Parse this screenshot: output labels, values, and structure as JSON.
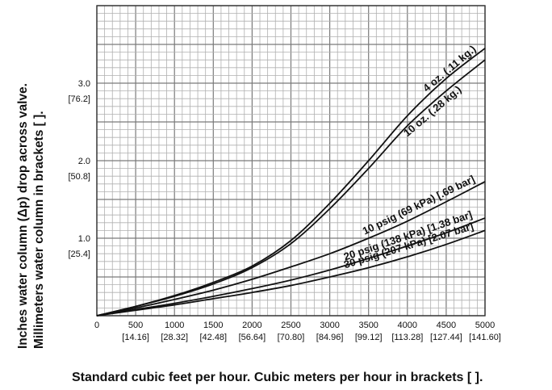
{
  "chart_data": {
    "type": "line",
    "xlabel": "Standard cubic feet per hour. Cubic meters per hour in brackets [ ].",
    "ylabel_lines": [
      "Inches water column (Δp) drop across valve.",
      "Millimeters water column in brackets [ ]."
    ],
    "xlim": [
      0,
      5000
    ],
    "ylim": [
      0,
      4.0
    ],
    "grid": true,
    "x_ticks": [
      {
        "value": 0,
        "label": "0",
        "sublabel": ""
      },
      {
        "value": 500,
        "label": "500",
        "sublabel": "[14.16]"
      },
      {
        "value": 1000,
        "label": "1000",
        "sublabel": "[28.32]"
      },
      {
        "value": 1500,
        "label": "1500",
        "sublabel": "[42.48]"
      },
      {
        "value": 2000,
        "label": "2000",
        "sublabel": "[56.64]"
      },
      {
        "value": 2500,
        "label": "2500",
        "sublabel": "[70.80]"
      },
      {
        "value": 3000,
        "label": "3000",
        "sublabel": "[84.96]"
      },
      {
        "value": 3500,
        "label": "3500",
        "sublabel": "[99.12]"
      },
      {
        "value": 4000,
        "label": "4000",
        "sublabel": "[113.28]"
      },
      {
        "value": 4500,
        "label": "4500",
        "sublabel": "[127.44]"
      },
      {
        "value": 5000,
        "label": "5000",
        "sublabel": "[141.60]"
      }
    ],
    "y_ticks": [
      {
        "value": 1.0,
        "label": "1.0",
        "sublabel": "[25.4]"
      },
      {
        "value": 2.0,
        "label": "2.0",
        "sublabel": "[50.8]"
      },
      {
        "value": 3.0,
        "label": "3.0",
        "sublabel": "[76.2]"
      }
    ],
    "series": [
      {
        "name": "4 oz. (.11 kg.)",
        "x": [
          0,
          500,
          1000,
          1500,
          2000,
          2500,
          3000,
          3500,
          4000,
          4500,
          5000
        ],
        "y": [
          0,
          0.12,
          0.26,
          0.43,
          0.64,
          0.97,
          1.45,
          2.0,
          2.58,
          3.06,
          3.45
        ]
      },
      {
        "name": "10 oz. (.28 kg.)",
        "x": [
          0,
          500,
          1000,
          1500,
          2000,
          2500,
          3000,
          3500,
          4000,
          4500,
          5000
        ],
        "y": [
          0,
          0.12,
          0.25,
          0.41,
          0.62,
          0.93,
          1.38,
          1.9,
          2.45,
          2.9,
          3.3
        ]
      },
      {
        "name": "10 psig (69 kPa) [.69 bar]",
        "x": [
          0,
          500,
          1000,
          1500,
          2000,
          2500,
          3000,
          3500,
          4000,
          4500,
          5000
        ],
        "y": [
          0,
          0.1,
          0.21,
          0.33,
          0.47,
          0.63,
          0.8,
          1.0,
          1.22,
          1.47,
          1.73
        ]
      },
      {
        "name": "20 psig (138 kPa) [1.38 bar]",
        "x": [
          0,
          500,
          1000,
          1500,
          2000,
          2500,
          3000,
          3500,
          4000,
          4500,
          5000
        ],
        "y": [
          0,
          0.08,
          0.16,
          0.25,
          0.35,
          0.46,
          0.59,
          0.74,
          0.9,
          1.07,
          1.26
        ]
      },
      {
        "name": "30 psig (207 kPa) [2.07 bar]",
        "x": [
          0,
          500,
          1000,
          1500,
          2000,
          2500,
          3000,
          3500,
          4000,
          4500,
          5000
        ],
        "y": [
          0,
          0.07,
          0.14,
          0.22,
          0.3,
          0.39,
          0.5,
          0.62,
          0.76,
          0.92,
          1.1
        ]
      }
    ]
  }
}
